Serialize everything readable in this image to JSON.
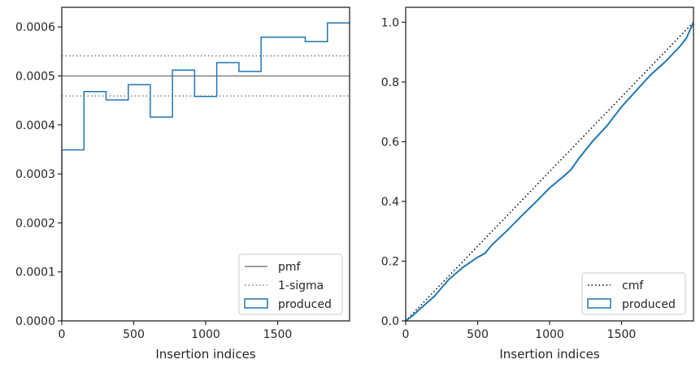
{
  "chart_data": [
    {
      "type": "line",
      "xlabel": "Insertion indices",
      "ylabel": "",
      "xlim": [
        0,
        2000
      ],
      "ylim": [
        0,
        0.00064
      ],
      "x_ticks": [
        0,
        500,
        1000,
        1500
      ],
      "x_tick_labels": [
        "0",
        "500",
        "1000",
        "1500"
      ],
      "y_ticks": [
        0,
        0.0001,
        0.0002,
        0.0003,
        0.0004,
        0.0005,
        0.0006
      ],
      "y_tick_labels": [
        "0.0000",
        "0.0001",
        "0.0002",
        "0.0003",
        "0.0004",
        "0.0005",
        "0.0006"
      ],
      "grid": false,
      "legend_position": "lower-right",
      "series": [
        {
          "name": "pmf",
          "kind": "hline",
          "y": 0.0005,
          "color": "#808080",
          "dash": "solid"
        },
        {
          "name": "1-sigma",
          "kind": "hlines",
          "y": [
            0.000459,
            0.000541
          ],
          "color": "#808080",
          "dash": "dotted"
        },
        {
          "name": "produced",
          "kind": "step-histogram",
          "color": "#1f77b4",
          "bin_edges": [
            0,
            154,
            308,
            462,
            615,
            769,
            923,
            1077,
            1231,
            1385,
            1538,
            1692,
            1846,
            2000
          ],
          "values": [
            0.000349,
            0.000468,
            0.000451,
            0.000482,
            0.000416,
            0.000512,
            0.000458,
            0.000527,
            0.000509,
            0.000579,
            0.000579,
            0.00057,
            0.000608
          ]
        }
      ]
    },
    {
      "type": "line",
      "xlabel": "Insertion indices",
      "ylabel": "",
      "xlim": [
        0,
        2000
      ],
      "ylim": [
        0,
        1.05
      ],
      "x_ticks": [
        0,
        500,
        1000,
        1500
      ],
      "x_tick_labels": [
        "0",
        "500",
        "1000",
        "1500"
      ],
      "y_ticks": [
        0,
        0.2,
        0.4,
        0.6,
        0.8,
        1.0
      ],
      "y_tick_labels": [
        "0.0",
        "0.2",
        "0.4",
        "0.6",
        "0.8",
        "1.0"
      ],
      "grid": false,
      "legend_position": "lower-right",
      "series": [
        {
          "name": "cmf",
          "kind": "line",
          "color": "#000000",
          "dash": "dotted",
          "x": [
            0,
            2000
          ],
          "y": [
            0,
            1.0
          ]
        },
        {
          "name": "produced",
          "kind": "step-line",
          "color": "#1f77b4",
          "x": [
            0,
            50,
            100,
            200,
            300,
            400,
            500,
            550,
            600,
            700,
            800,
            900,
            1000,
            1100,
            1150,
            1200,
            1300,
            1400,
            1500,
            1600,
            1700,
            1800,
            1900,
            1950,
            2000
          ],
          "y": [
            0,
            0.018,
            0.04,
            0.083,
            0.139,
            0.18,
            0.213,
            0.226,
            0.255,
            0.3,
            0.349,
            0.396,
            0.445,
            0.485,
            0.507,
            0.542,
            0.602,
            0.654,
            0.717,
            0.77,
            0.823,
            0.866,
            0.916,
            0.946,
            1.0
          ]
        }
      ]
    }
  ]
}
